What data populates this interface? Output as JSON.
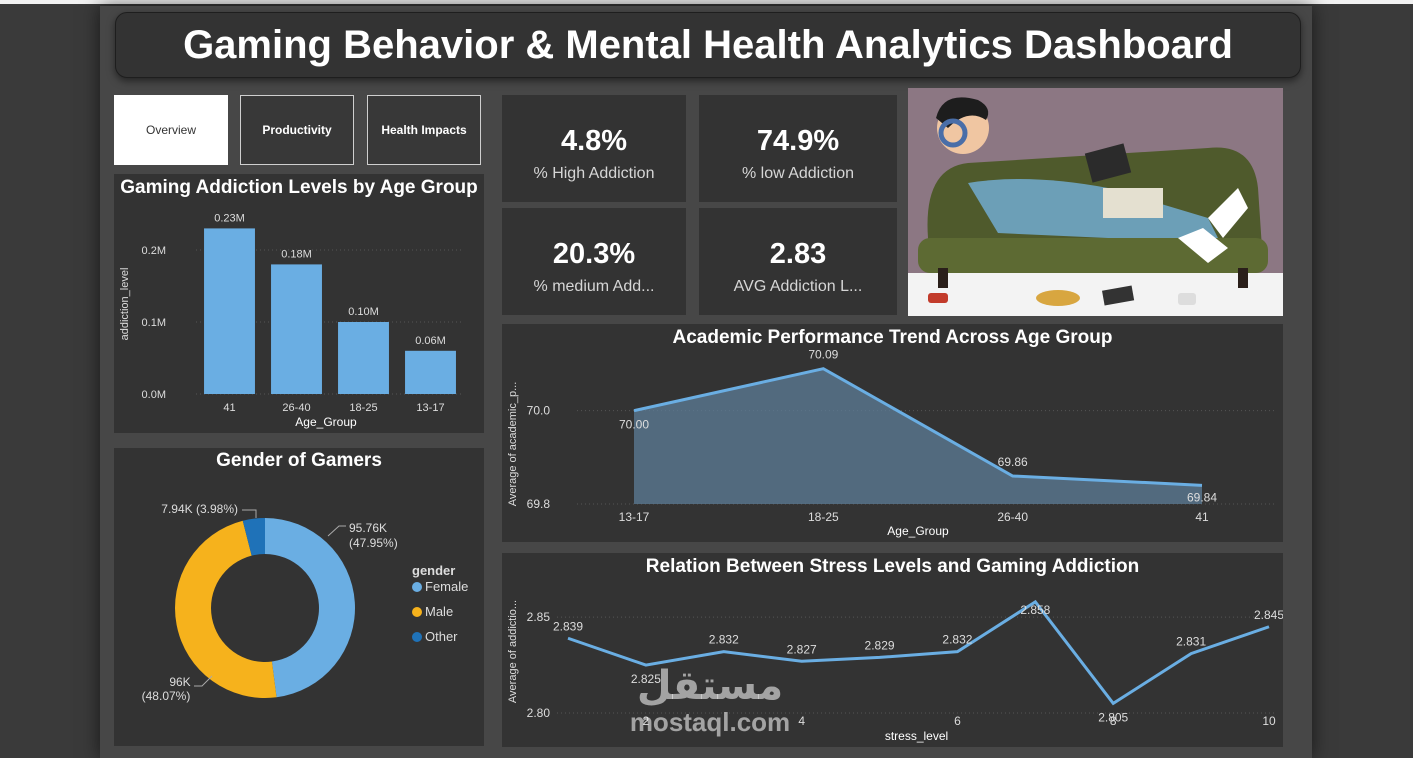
{
  "dashboard": {
    "title": "Gaming Behavior & Mental Health Analytics Dashboard"
  },
  "nav": {
    "tabs": [
      {
        "label": "Overview"
      },
      {
        "label": "Productivity"
      },
      {
        "label": "Health Impacts"
      }
    ]
  },
  "kpis": [
    {
      "value": "4.8%",
      "label": "% High Addiction"
    },
    {
      "value": "74.9%",
      "label": "% low Addiction"
    },
    {
      "value": "20.3%",
      "label": "% medium Add..."
    },
    {
      "value": "2.83",
      "label": "AVG Addiction L..."
    }
  ],
  "watermark": {
    "arabic": "مستقل",
    "latin": "mostaql.com"
  },
  "chart_data": [
    {
      "type": "bar",
      "title": "Gaming Addiction Levels by Age Group",
      "xlabel": "Age_Group",
      "ylabel": "addiction_level",
      "categories": [
        "41",
        "26-40",
        "18-25",
        "13-17"
      ],
      "values": [
        0.23,
        0.18,
        0.1,
        0.06
      ],
      "data_labels": [
        "0.23M",
        "0.18M",
        "0.10M",
        "0.06M"
      ],
      "yticks": [
        0,
        0.1,
        0.2
      ],
      "ytick_labels": [
        "0.0M",
        "0.1M",
        "0.2M"
      ],
      "ylim": [
        0,
        0.25
      ],
      "color": "#6aaee3"
    },
    {
      "type": "pie",
      "title": "Gender of Gamers",
      "legend_title": "gender",
      "slices": [
        {
          "name": "Female",
          "value": 95.76,
          "label": "95.76K",
          "pct": "(47.95%)",
          "color": "#6aaee3"
        },
        {
          "name": "Male",
          "value": 96.0,
          "label": "96K",
          "pct": "(48.07%)",
          "color": "#f6b21c"
        },
        {
          "name": "Other",
          "value": 7.94,
          "label": "7.94K (3.98%)",
          "pct": "",
          "color": "#1f72b8"
        }
      ]
    },
    {
      "type": "area",
      "title": "Academic Performance Trend Across Age Group",
      "xlabel": "Age_Group",
      "ylabel": "Average of academic_p...",
      "categories": [
        "13-17",
        "18-25",
        "26-40",
        "41"
      ],
      "values": [
        70.0,
        70.09,
        69.86,
        69.84
      ],
      "data_labels": [
        "70.00",
        "70.09",
        "69.86",
        "69.84"
      ],
      "yticks": [
        69.8,
        70.0
      ],
      "ytick_labels": [
        "69.8",
        "70.0"
      ],
      "ylim": [
        69.8,
        70.1
      ],
      "color": "#6aaee3"
    },
    {
      "type": "line",
      "title": "Relation Between Stress Levels and Gaming Addiction",
      "xlabel": "stress_level",
      "ylabel": "Average of addictio...",
      "x": [
        1,
        2,
        3,
        4,
        5,
        6,
        7,
        8,
        9,
        10
      ],
      "values": [
        2.839,
        2.825,
        2.832,
        2.827,
        2.829,
        2.832,
        2.858,
        2.805,
        2.831,
        2.845
      ],
      "data_labels": [
        "2.839",
        "2.825",
        "2.832",
        "2.827",
        "2.829",
        "2.832",
        "2.858",
        "2.805",
        "2.831",
        "2.845"
      ],
      "xticks": [
        2,
        4,
        6,
        8,
        10
      ],
      "xtick_labels": [
        "2",
        "4",
        "6",
        "8",
        "10"
      ],
      "yticks": [
        2.8,
        2.85
      ],
      "ytick_labels": [
        "2.80",
        "2.85"
      ],
      "ylim": [
        2.8,
        2.86
      ],
      "color": "#6aaee3"
    }
  ]
}
